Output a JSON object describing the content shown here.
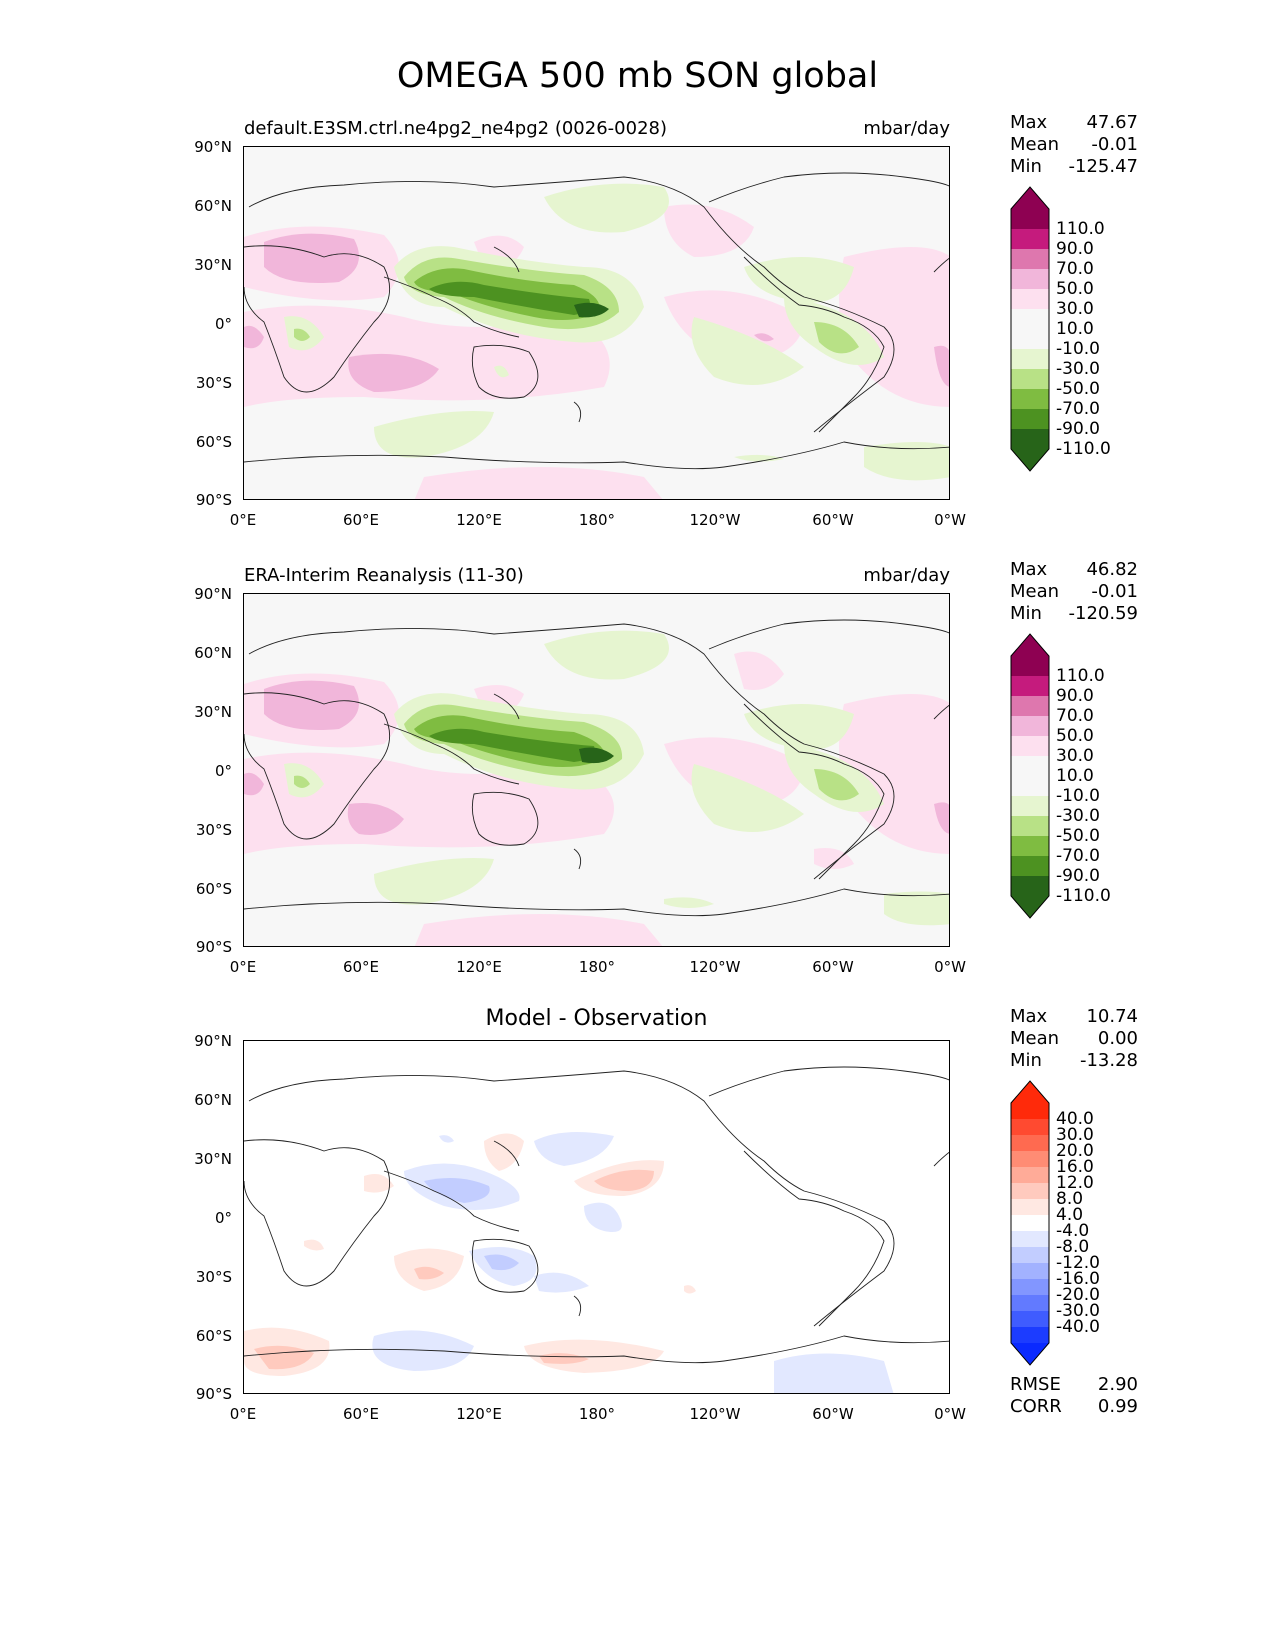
{
  "figure": {
    "title": "OMEGA 500 mb SON global"
  },
  "axes": {
    "lat_ticks": [
      "90°N",
      "60°N",
      "30°N",
      "0°",
      "30°S",
      "60°S",
      "90°S"
    ],
    "lon_ticks": [
      "0°E",
      "60°E",
      "120°E",
      "180°",
      "120°W",
      "60°W",
      "0°W"
    ]
  },
  "panels": [
    {
      "title": "default.E3SM.ctrl.ne4pg2_ne4pg2 (0026-0028)",
      "units": "mbar/day",
      "stats": [
        {
          "label": "Max",
          "value": "47.67"
        },
        {
          "label": "Mean",
          "value": "-0.01"
        },
        {
          "label": "Min",
          "value": "-125.47"
        }
      ]
    },
    {
      "title": "ERA-Interim Reanalysis (11-30)",
      "units": "mbar/day",
      "stats": [
        {
          "label": "Max",
          "value": "46.82"
        },
        {
          "label": "Mean",
          "value": "-0.01"
        },
        {
          "label": "Min",
          "value": "-120.59"
        }
      ]
    },
    {
      "title": "Model - Observation",
      "units": "",
      "stats": [
        {
          "label": "Max",
          "value": "10.74"
        },
        {
          "label": "Mean",
          "value": "0.00"
        },
        {
          "label": "Min",
          "value": "-13.28"
        }
      ],
      "metrics": [
        {
          "label": "RMSE",
          "value": "2.90"
        },
        {
          "label": "CORR",
          "value": "0.99"
        }
      ]
    }
  ],
  "colorbar_field": {
    "labels": [
      "110.0",
      "90.0",
      "70.0",
      "50.0",
      "30.0",
      "10.0",
      "-10.0",
      "-30.0",
      "-50.0",
      "-70.0",
      "-90.0",
      "-110.0"
    ],
    "colors": [
      "#8e0152",
      "#c51b7d",
      "#de77ae",
      "#f1b6da",
      "#fde0ef",
      "#f7f7f7",
      "#f7f7f7",
      "#e6f5d0",
      "#b8e186",
      "#7fbc41",
      "#4d9221",
      "#276419"
    ],
    "top_color": "#8e0152",
    "bottom_color": "#276419"
  },
  "colorbar_diff": {
    "labels": [
      "40.0",
      "30.0",
      "20.0",
      "16.0",
      "12.0",
      "8.0",
      "4.0",
      "-4.0",
      "-8.0",
      "-12.0",
      "-16.0",
      "-20.0",
      "-30.0",
      "-40.0"
    ],
    "colors": [
      "#ff2a0a",
      "#ff4a30",
      "#ff6a50",
      "#ff8c74",
      "#ffab98",
      "#ffcabe",
      "#ffe8e2",
      "#ffffff",
      "#e2e8ff",
      "#c2cdff",
      "#a2b2ff",
      "#8296ff",
      "#627aff",
      "#3f5cff",
      "#1c3cff"
    ],
    "top_color": "#ff2a0a",
    "bottom_color": "#0a2aff"
  }
}
